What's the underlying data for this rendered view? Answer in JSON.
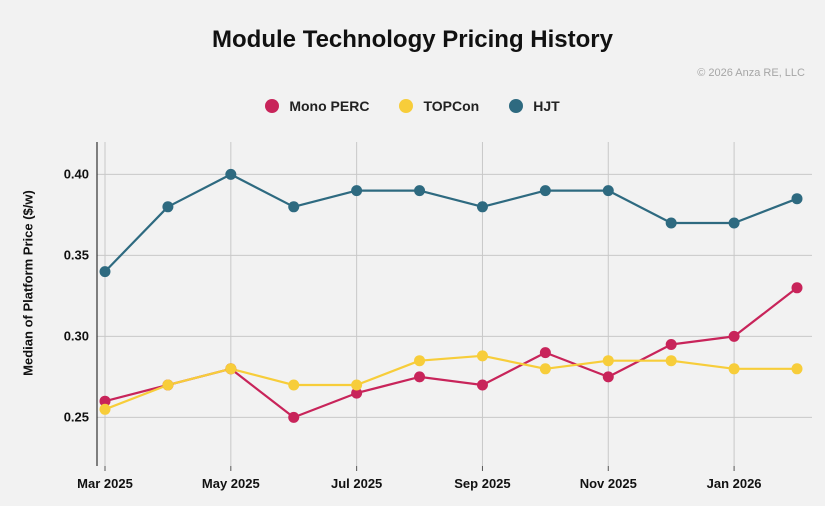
{
  "chart_data": {
    "type": "line",
    "title": "Module Technology Pricing History",
    "copyright": "© 2026 Anza RE, LLC",
    "xlabel": "",
    "ylabel": "Median of Platform Price ($/w)",
    "ylim": [
      0.22,
      0.42
    ],
    "yticks": [
      0.25,
      0.3,
      0.35,
      0.4
    ],
    "ytick_labels": [
      "0.25",
      "0.30",
      "0.35",
      "0.40"
    ],
    "x": [
      "Mar 2025",
      "Apr 2025",
      "May 2025",
      "Jun 2025",
      "Jul 2025",
      "Aug 2025",
      "Sep 2025",
      "Oct 2025",
      "Nov 2025",
      "Dec 2025",
      "Jan 2026",
      "Feb 2026"
    ],
    "xtick_labels": [
      "Mar 2025",
      "May 2025",
      "Jul 2025",
      "Sep 2025",
      "Nov 2025",
      "Jan 2026"
    ],
    "xtick_index": [
      0,
      2,
      4,
      6,
      8,
      10
    ],
    "grid": true,
    "legend_position": "top-center",
    "series": [
      {
        "name": "Mono PERC",
        "color": "#c8245a",
        "values": [
          0.26,
          0.27,
          0.28,
          0.25,
          0.265,
          0.275,
          0.27,
          0.29,
          0.275,
          0.295,
          0.3,
          0.33
        ]
      },
      {
        "name": "TOPCon",
        "color": "#f7cd3a",
        "values": [
          0.255,
          0.27,
          0.28,
          0.27,
          0.27,
          0.285,
          0.288,
          0.28,
          0.285,
          0.285,
          0.28,
          0.28
        ]
      },
      {
        "name": "HJT",
        "color": "#2e6a80",
        "values": [
          0.34,
          0.38,
          0.4,
          0.38,
          0.39,
          0.39,
          0.38,
          0.39,
          0.39,
          0.37,
          0.37,
          0.385
        ]
      }
    ]
  }
}
